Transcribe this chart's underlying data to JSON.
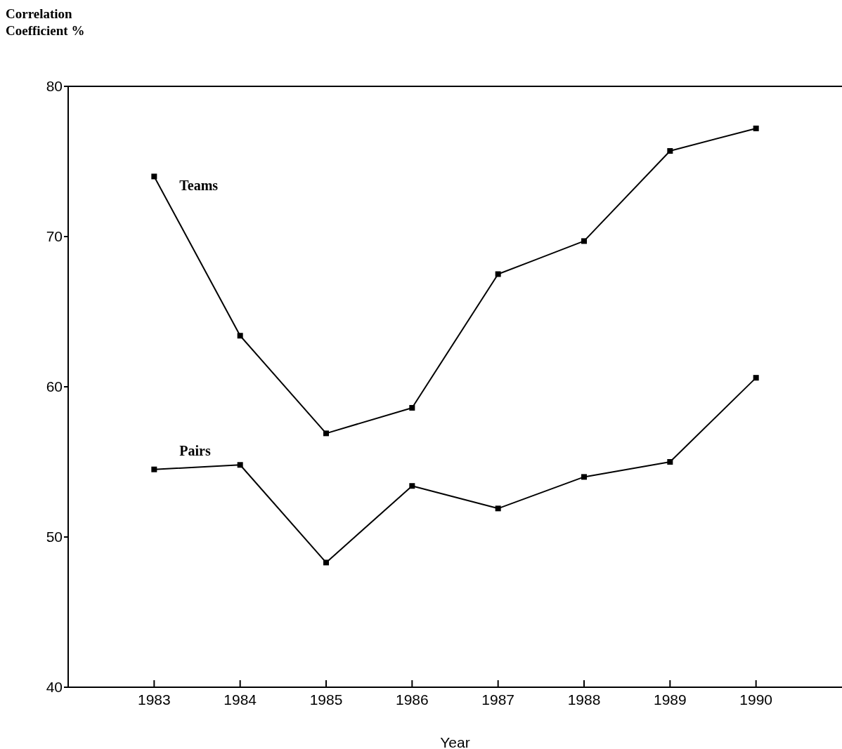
{
  "chart_data": {
    "type": "line",
    "xlabel": "Year",
    "ylabel": "Correlation Coefficient %",
    "x": [
      1983,
      1984,
      1985,
      1986,
      1987,
      1988,
      1989,
      1990
    ],
    "xlim": [
      1982,
      1991
    ],
    "xticks": [
      1983,
      1984,
      1985,
      1986,
      1987,
      1988,
      1989,
      1990
    ],
    "ylim": [
      40,
      80
    ],
    "yticks": [
      40,
      50,
      60,
      70,
      80
    ],
    "grid": false,
    "legend": false,
    "marker": "square",
    "line_style": "solid",
    "series": [
      {
        "name": "Teams",
        "color": "#000000",
        "values": [
          74.0,
          63.4,
          56.9,
          58.6,
          67.5,
          69.7,
          75.7,
          77.2
        ]
      },
      {
        "name": "Pairs",
        "color": "#000000",
        "values": [
          54.5,
          54.8,
          48.3,
          53.4,
          51.9,
          54.0,
          55.0,
          60.6
        ]
      }
    ]
  }
}
